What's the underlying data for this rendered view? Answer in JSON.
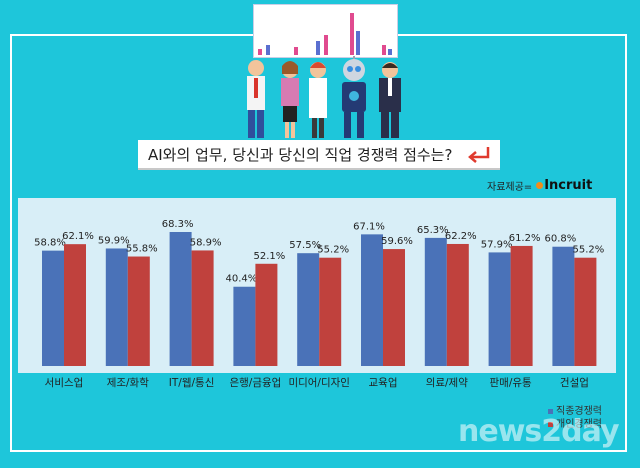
{
  "header": {
    "question": "AI와의 업무, 당신과 당신의 직업 경쟁력 점수는?",
    "source_label": "자료제공=",
    "source_brand": "Incruit",
    "watermark": "news2day"
  },
  "colors": {
    "background": "#1ec6da",
    "plot_background": "#d8eef7",
    "job_series": "#4a72b8",
    "personal_series": "#c0413d"
  },
  "icons": [
    "monitor-icon",
    "office-worker-icon",
    "robot-icon",
    "return-arrow-icon"
  ],
  "chart_data": {
    "type": "bar",
    "categories": [
      "서비스업",
      "제조/화학",
      "IT/웹/통신",
      "은행/금융업",
      "미디어/디자인",
      "교육업",
      "의료/제약",
      "판매/유통",
      "건설업"
    ],
    "series": [
      {
        "name": "직종경쟁력",
        "values": [
          58.8,
          59.9,
          68.3,
          40.4,
          57.5,
          67.1,
          65.3,
          57.9,
          60.8
        ]
      },
      {
        "name": "개인경쟁력",
        "values": [
          62.1,
          55.8,
          58.9,
          52.1,
          55.2,
          59.6,
          62.2,
          61.2,
          55.2
        ]
      }
    ],
    "data_labels": [
      [
        "58.8%",
        "59.9%",
        "68.3%",
        "40.4%",
        "57.5%",
        "67.1%",
        "65.3%",
        "57.9%",
        "60.8%"
      ],
      [
        "62.1%",
        "55.8%",
        "58.9%",
        "52.1%",
        "55.2%",
        "59.6%",
        "62.2%",
        "61.2%",
        "55.2%"
      ]
    ],
    "ylim": [
      0,
      73
    ],
    "grid": false,
    "legend": "bottom-right"
  }
}
